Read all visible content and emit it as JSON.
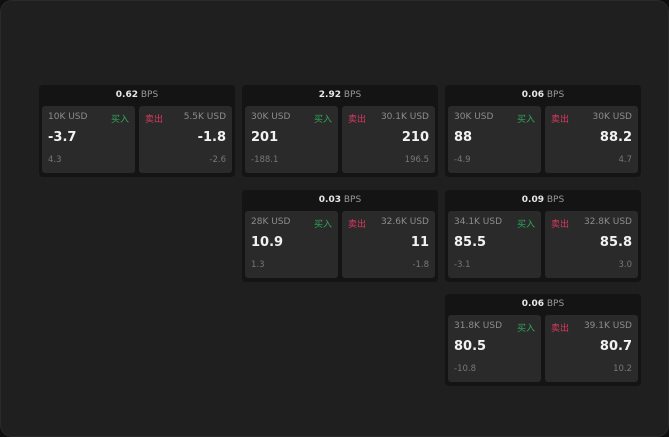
{
  "colors": {
    "buy": "#2ea85c",
    "sell": "#d8395f"
  },
  "unit": "BPS",
  "buy_label": "买入",
  "sell_label": "卖出",
  "cards": [
    {
      "spread": "0.62",
      "buy": {
        "size": "10K USD",
        "price": "-3.7",
        "change": "4.3"
      },
      "sell": {
        "size": "5.5K USD",
        "price": "-1.8",
        "change": "-2.6"
      }
    },
    {
      "spread": "2.92",
      "buy": {
        "size": "30K USD",
        "price": "201",
        "change": "-188.1"
      },
      "sell": {
        "size": "30.1K USD",
        "price": "210",
        "change": "196.5"
      }
    },
    {
      "spread": "0.06",
      "buy": {
        "size": "30K USD",
        "price": "88",
        "change": "-4.9"
      },
      "sell": {
        "size": "30K USD",
        "price": "88.2",
        "change": "4.7"
      }
    },
    {
      "spread": "0.03",
      "buy": {
        "size": "28K USD",
        "price": "10.9",
        "change": "1.3"
      },
      "sell": {
        "size": "32.6K USD",
        "price": "11",
        "change": "-1.8"
      }
    },
    {
      "spread": "0.09",
      "buy": {
        "size": "34.1K USD",
        "price": "85.5",
        "change": "-3.1"
      },
      "sell": {
        "size": "32.8K USD",
        "price": "85.8",
        "change": "3.0"
      }
    },
    {
      "spread": "0.06",
      "buy": {
        "size": "31.8K USD",
        "price": "80.5",
        "change": "-10.8"
      },
      "sell": {
        "size": "39.1K USD",
        "price": "80.7",
        "change": "10.2"
      }
    }
  ]
}
